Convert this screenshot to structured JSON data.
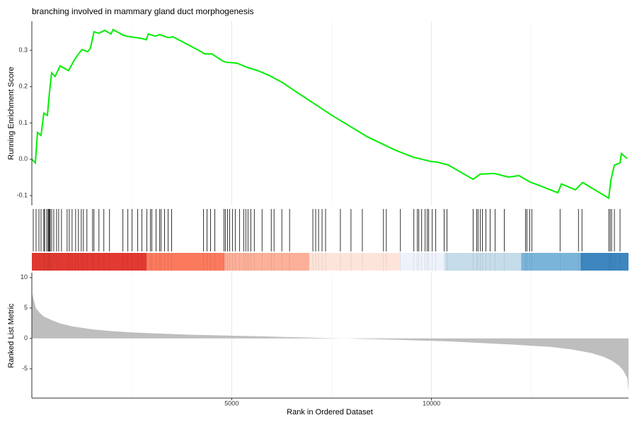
{
  "chart_data": [
    {
      "type": "line",
      "title": "branching involved in mammary gland duct morphogenesis",
      "ylabel": "Running Enrichment Score",
      "x": [
        0,
        88,
        141,
        230,
        300,
        389,
        442,
        495,
        583,
        707,
        919,
        1060,
        1148,
        1254,
        1396,
        1466,
        1555,
        1678,
        1820,
        1979,
        2032,
        2297,
        2473,
        2739,
        2862,
        2915,
        3092,
        3198,
        3410,
        3534,
        4205,
        4329,
        4505,
        4770,
        4859,
        5124,
        5389,
        5654,
        5919,
        6272,
        6625,
        7509,
        8392,
        9099,
        9541,
        9982,
        10159,
        10424,
        11042,
        11219,
        11572,
        11926,
        12191,
        12456,
        13163,
        13251,
        13604,
        13781,
        14435,
        14488,
        14576,
        14717,
        14753,
        14894
      ],
      "series": [
        {
          "color": "#00ee00",
          "values": [
            0,
            -0.01,
            0.074,
            0.066,
            0.127,
            0.121,
            0.185,
            0.238,
            0.228,
            0.257,
            0.244,
            0.273,
            0.287,
            0.302,
            0.296,
            0.306,
            0.351,
            0.347,
            0.355,
            0.345,
            0.357,
            0.341,
            0.337,
            0.333,
            0.329,
            0.345,
            0.339,
            0.343,
            0.335,
            0.337,
            0.298,
            0.29,
            0.29,
            0.271,
            0.267,
            0.265,
            0.253,
            0.244,
            0.232,
            0.211,
            0.185,
            0.121,
            0.062,
            0.025,
            0.006,
            -0.006,
            -0.008,
            -0.016,
            -0.055,
            -0.041,
            -0.039,
            -0.049,
            -0.045,
            -0.062,
            -0.092,
            -0.068,
            -0.084,
            -0.064,
            -0.107,
            -0.058,
            -0.016,
            -0.01,
            0.016,
            0.002
          ]
        }
      ],
      "ylim": [
        -0.127,
        0.38
      ],
      "yticks": [
        -0.1,
        {
          "value": 0,
          "label": "0.0"
        },
        0.1,
        0.2,
        0.3
      ]
    },
    {
      "type": "rug",
      "x": [
        35,
        106,
        177,
        230,
        300,
        318,
        371,
        406,
        424,
        442,
        459,
        495,
        548,
        618,
        671,
        742,
        883,
        937,
        1007,
        1096,
        1166,
        1237,
        1290,
        1378,
        1520,
        1555,
        1679,
        1802,
        1944,
        2279,
        2403,
        2509,
        2650,
        2756,
        2880,
        2969,
        3004,
        3110,
        3198,
        3234,
        3322,
        3410,
        3499,
        4294,
        4382,
        4470,
        4577,
        4806,
        4842,
        4895,
        4948,
        5018,
        5089,
        5195,
        5301,
        5354,
        5407,
        5478,
        5566,
        5760,
        5990,
        6060,
        6255,
        6449,
        7032,
        7103,
        7174,
        7262,
        7350,
        7721,
        7986,
        8270,
        8799,
        8870,
        9223,
        9559,
        9648,
        9683,
        9754,
        9842,
        9895,
        9930,
        10019,
        10107,
        10319,
        10390,
        11044,
        11132,
        11167,
        11220,
        11273,
        11362,
        11468,
        11591,
        11821,
        12351,
        12386,
        12457,
        12510,
        13217,
        13677,
        13765,
        14436,
        14471,
        14507,
        14577,
        14718
      ],
      "color": "#000000",
      "band_edges": [
        0,
        2870,
        4823,
        6944,
        9206,
        10336,
        12244,
        13730,
        14930
      ],
      "band_colors": [
        "#e23a32",
        "#fb7a5e",
        "#fcb09a",
        "#fde4da",
        "#eef2fb",
        "#c5dcea",
        "#7ab5d9",
        "#3d86c0"
      ]
    },
    {
      "type": "area",
      "ylabel": "Ranked List Metric",
      "xlabel": "Rank in Ordered Dataset",
      "x": [
        0,
        30,
        100,
        200,
        300,
        500,
        700,
        1000,
        1500,
        2000,
        2500,
        3000,
        4000,
        5000,
        6000,
        7500,
        9000,
        10500,
        12000,
        13000,
        13500,
        14000,
        14300,
        14500,
        14700,
        14800,
        14900,
        14930
      ],
      "values": [
        7.5,
        6.8,
        5,
        4.2,
        3.6,
        3,
        2.5,
        2,
        1.5,
        1.2,
        1,
        0.85,
        0.6,
        0.45,
        0.3,
        0.05,
        -0.2,
        -0.5,
        -1,
        -1.4,
        -1.8,
        -2.4,
        -3,
        -3.6,
        -4.5,
        -5.3,
        -6.5,
        -8.7
      ],
      "color": "#bebebe",
      "xlim": [
        0,
        14930
      ],
      "xticks": [
        5000,
        10000
      ],
      "xminor": [
        2500,
        7500,
        12500
      ],
      "ylim": [
        -9.8,
        10.8
      ],
      "yticks": [
        -5,
        0,
        5,
        10
      ]
    }
  ]
}
